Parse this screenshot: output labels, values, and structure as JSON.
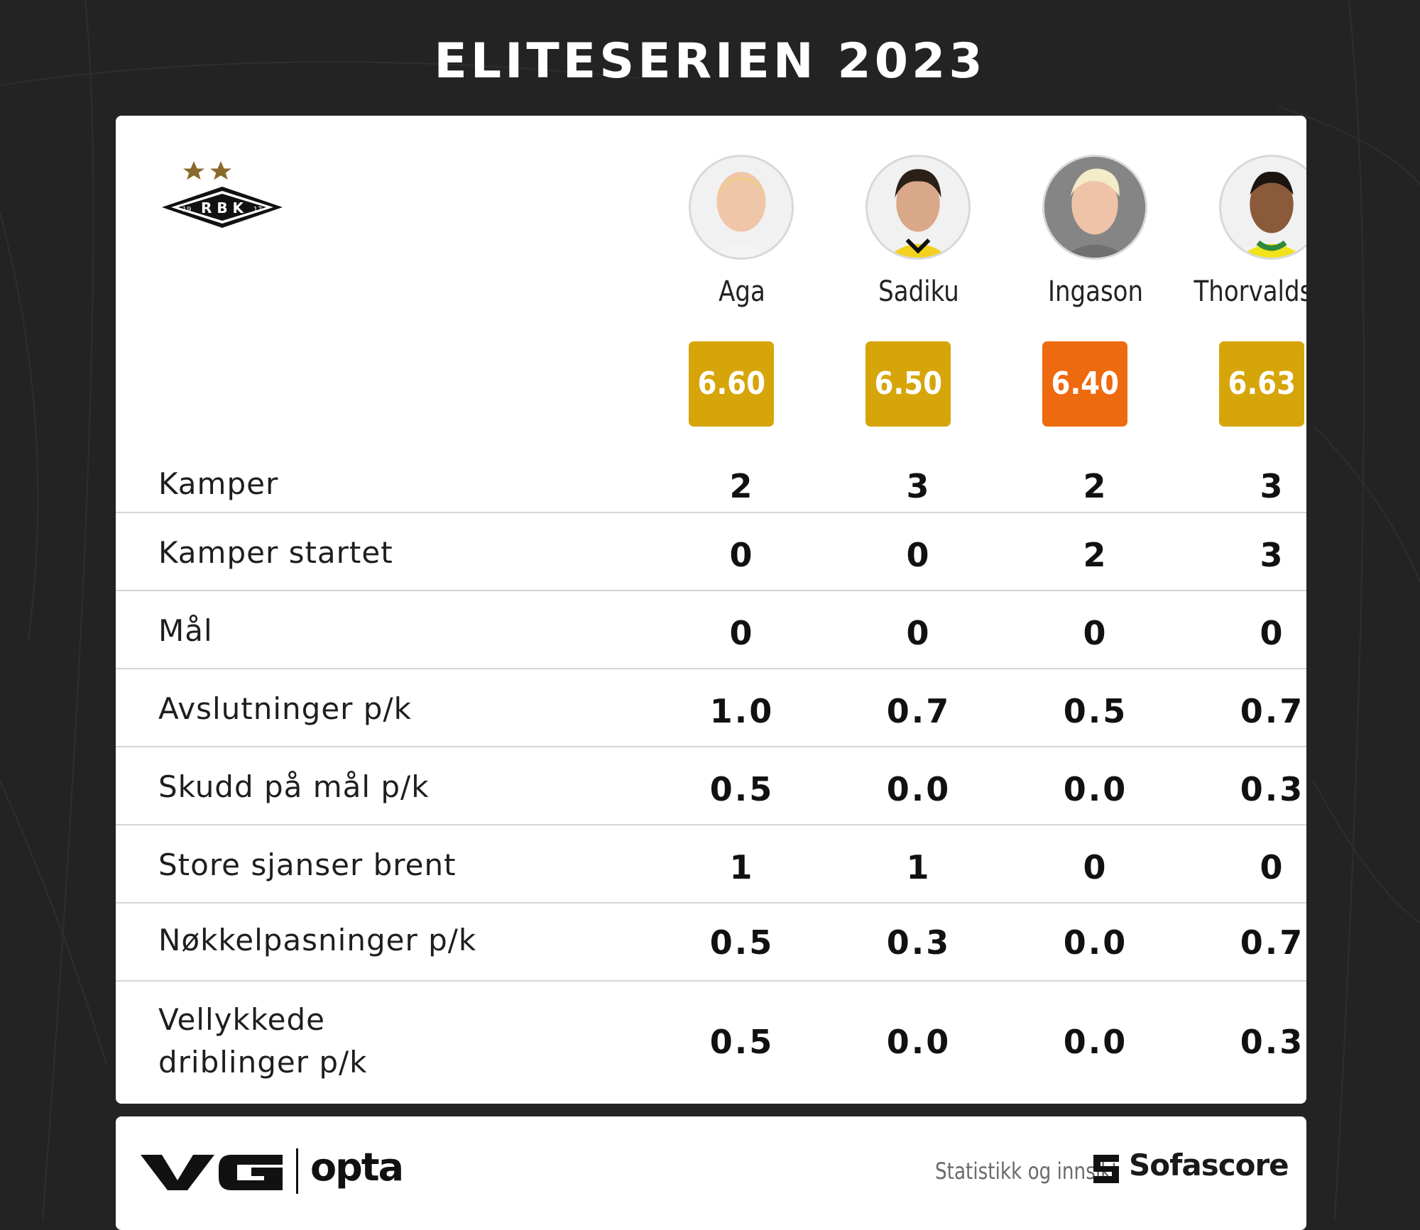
{
  "title": "ELITESERIEN 2023",
  "club": {
    "logo_text": "R B K",
    "year_left": "19",
    "year_right": "17"
  },
  "players": [
    {
      "name": "Aga",
      "rating": "6.60",
      "rating_color": "#d6a50a"
    },
    {
      "name": "Sadiku",
      "rating": "6.50",
      "rating_color": "#d6a50a"
    },
    {
      "name": "Ingason",
      "rating": "6.40",
      "rating_color": "#ee6a0e"
    },
    {
      "name": "Thorvaldsson",
      "rating": "6.63",
      "rating_color": "#d6a50a"
    }
  ],
  "stats": [
    {
      "label": "Kamper",
      "values": [
        "2",
        "3",
        "2",
        "3"
      ]
    },
    {
      "label": "Kamper startet",
      "values": [
        "0",
        "0",
        "2",
        "3"
      ]
    },
    {
      "label": "Mål",
      "values": [
        "0",
        "0",
        "0",
        "0"
      ]
    },
    {
      "label": "Avslutninger p/k",
      "values": [
        "1.0",
        "0.7",
        "0.5",
        "0.7"
      ]
    },
    {
      "label": "Skudd på mål p/k",
      "values": [
        "0.5",
        "0.0",
        "0.0",
        "0.3"
      ]
    },
    {
      "label": "Store sjanser brent",
      "values": [
        "1",
        "1",
        "0",
        "0"
      ]
    },
    {
      "label": "Nøkkelpasninger p/k",
      "values": [
        "0.5",
        "0.3",
        "0.0",
        "0.7"
      ]
    },
    {
      "label_line1": "Vellykkede",
      "label_line2": "driblinger p/k",
      "values": [
        "0.5",
        "0.0",
        "0.0",
        "0.3"
      ]
    }
  ],
  "footer": {
    "brand_vg": "VG",
    "brand_opta": "opta",
    "caption": "Statistikk og innsikt",
    "sofascore": "Sofascore"
  }
}
